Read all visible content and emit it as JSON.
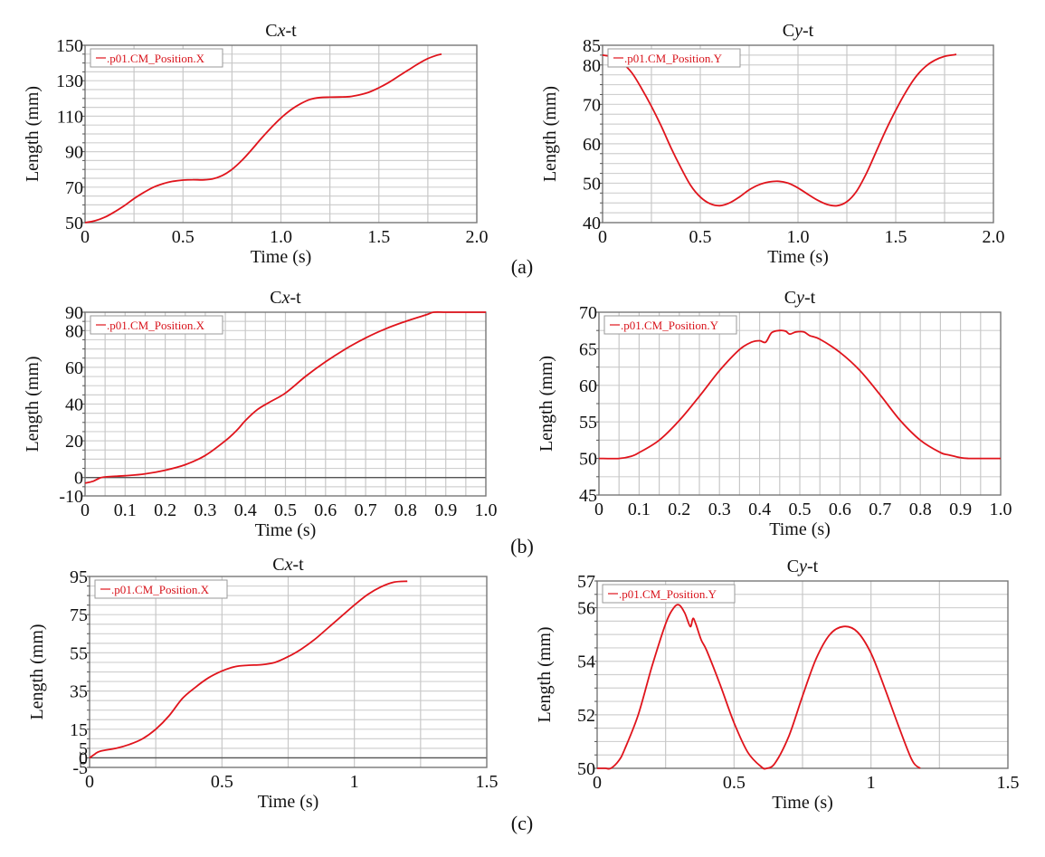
{
  "figure": {
    "panel_labels": [
      "(a)",
      "(b)",
      "(c)"
    ],
    "line_color": "#e0141c",
    "grid_color": "#d0d0d0"
  },
  "chart_data": [
    {
      "id": "a-cx",
      "panel": "(a)",
      "type": "line",
      "title": "Cx-t",
      "title_prefix": "C",
      "title_var": "x",
      "title_suffix": "-t",
      "xlabel": "Time (s)",
      "ylabel": "Length (mm)",
      "xlim": [
        0,
        2.0
      ],
      "ylim": [
        50,
        150
      ],
      "xticks": [
        0,
        0.5,
        1.0,
        1.5,
        2.0
      ],
      "xtick_labels": [
        "0",
        "0.5",
        "1.0",
        "1.5",
        "2.0"
      ],
      "yticks": [
        50,
        70,
        90,
        110,
        130,
        150
      ],
      "ytick_labels": [
        "50",
        "70",
        "90",
        "110",
        "130",
        "150"
      ],
      "minor_y_step": 5,
      "minor_x_step": 0.25,
      "zero_line": false,
      "legend": {
        "label": ".p01.CM_Position.X",
        "position": "top-left"
      },
      "series": [
        {
          "name": ".p01.CM_Position.X",
          "x": [
            0,
            0.05,
            0.1,
            0.15,
            0.2,
            0.25,
            0.3,
            0.35,
            0.4,
            0.45,
            0.5,
            0.55,
            0.6,
            0.65,
            0.7,
            0.75,
            0.8,
            0.85,
            0.9,
            0.95,
            1.0,
            1.05,
            1.1,
            1.15,
            1.2,
            1.25,
            1.3,
            1.35,
            1.4,
            1.45,
            1.5,
            1.55,
            1.6,
            1.65,
            1.7,
            1.75,
            1.8,
            1.82
          ],
          "y": [
            50,
            51,
            53,
            56,
            59.5,
            63.5,
            67,
            70,
            72,
            73.3,
            74,
            74.2,
            74.1,
            74.6,
            76.5,
            80,
            85,
            91,
            97.5,
            103.5,
            109,
            113.5,
            117,
            119.5,
            120.5,
            120.7,
            120.8,
            121,
            122,
            123.5,
            126,
            129,
            132.5,
            136,
            139.5,
            142.5,
            144.5,
            145
          ]
        }
      ]
    },
    {
      "id": "a-cy",
      "panel": "(a)",
      "type": "line",
      "title": "Cy-t",
      "title_prefix": "C",
      "title_var": "y",
      "title_suffix": "-t",
      "xlabel": "Time (s)",
      "ylabel": "Length (mm)",
      "xlim": [
        0,
        2.0
      ],
      "ylim": [
        40,
        85
      ],
      "xticks": [
        0,
        0.5,
        1.0,
        1.5,
        2.0
      ],
      "xtick_labels": [
        "0",
        "0.5",
        "1.0",
        "1.5",
        "2.0"
      ],
      "yticks": [
        40,
        50,
        60,
        70,
        80,
        85
      ],
      "ytick_labels": [
        "40",
        "50",
        "60",
        "70",
        "80",
        "85"
      ],
      "minor_y_step": 2.5,
      "minor_x_step": 0.25,
      "zero_line": false,
      "legend": {
        "label": ".p01.CM_Position.Y",
        "position": "top-left"
      },
      "series": [
        {
          "name": ".p01.CM_Position.Y",
          "x": [
            0,
            0.05,
            0.1,
            0.15,
            0.2,
            0.25,
            0.3,
            0.35,
            0.4,
            0.45,
            0.5,
            0.55,
            0.6,
            0.65,
            0.7,
            0.75,
            0.8,
            0.85,
            0.9,
            0.95,
            1.0,
            1.05,
            1.1,
            1.15,
            1.2,
            1.25,
            1.3,
            1.35,
            1.4,
            1.45,
            1.5,
            1.55,
            1.6,
            1.65,
            1.7,
            1.75,
            1.8,
            1.81
          ],
          "y": [
            82.5,
            82,
            80.5,
            78,
            74,
            69.5,
            64.5,
            59,
            54,
            49.5,
            46.5,
            44.8,
            44.3,
            45,
            46.5,
            48.3,
            49.6,
            50.3,
            50.5,
            50,
            48.8,
            47.2,
            45.7,
            44.6,
            44.3,
            45.3,
            48,
            52.5,
            58,
            63.5,
            68.5,
            73,
            76.8,
            79.5,
            81.2,
            82.2,
            82.6,
            82.7
          ]
        }
      ]
    },
    {
      "id": "b-cx",
      "panel": "(b)",
      "type": "line",
      "title": "Cx-t",
      "title_prefix": "C",
      "title_var": "x",
      "title_suffix": "-t",
      "xlabel": "Time (s)",
      "ylabel": "Length (mm)",
      "xlim": [
        0,
        1.0
      ],
      "ylim": [
        -10,
        90
      ],
      "xticks": [
        0,
        0.1,
        0.2,
        0.3,
        0.4,
        0.5,
        0.6,
        0.7,
        0.8,
        0.9,
        1.0
      ],
      "xtick_labels": [
        "0",
        "0.1",
        "0.2",
        "0.3",
        "0.4",
        "0.5",
        "0.6",
        "0.7",
        "0.8",
        "0.9",
        "1.0"
      ],
      "yticks": [
        -10,
        0,
        20,
        40,
        60,
        80,
        90
      ],
      "ytick_labels": [
        "-10",
        "0",
        "20",
        "40",
        "60",
        "80",
        "90"
      ],
      "minor_y_step": 5,
      "minor_x_step": 0.05,
      "zero_line": true,
      "legend": {
        "label": ".p01.CM_Position.X",
        "position": "top-left"
      },
      "series": [
        {
          "name": ".p01.CM_Position.X",
          "x": [
            0,
            0.02,
            0.04,
            0.06,
            0.1,
            0.15,
            0.2,
            0.25,
            0.3,
            0.35,
            0.38,
            0.4,
            0.43,
            0.46,
            0.5,
            0.55,
            0.6,
            0.65,
            0.7,
            0.75,
            0.8,
            0.85,
            0.87,
            0.9,
            0.95,
            1.0
          ],
          "y": [
            -3,
            -2,
            0,
            0.5,
            1,
            2,
            4,
            7,
            12,
            20,
            26,
            31,
            37,
            41,
            46,
            55,
            63,
            70,
            76,
            81,
            85,
            88.5,
            90,
            90,
            90,
            90
          ]
        }
      ]
    },
    {
      "id": "b-cy",
      "panel": "(b)",
      "type": "line",
      "title": "Cy-t",
      "title_prefix": "C",
      "title_var": "y",
      "title_suffix": "-t",
      "xlabel": "Time (s)",
      "ylabel": "Length (mm)",
      "xlim": [
        0,
        1.0
      ],
      "ylim": [
        45,
        70
      ],
      "xticks": [
        0,
        0.1,
        0.2,
        0.3,
        0.4,
        0.5,
        0.6,
        0.7,
        0.8,
        0.9,
        1.0
      ],
      "xtick_labels": [
        "0",
        "0.1",
        "0.2",
        "0.3",
        "0.4",
        "0.5",
        "0.6",
        "0.7",
        "0.8",
        "0.9",
        "1.0"
      ],
      "yticks": [
        45,
        50,
        55,
        60,
        65,
        70
      ],
      "ytick_labels": [
        "45",
        "50",
        "55",
        "60",
        "65",
        "70"
      ],
      "minor_y_step": 2.5,
      "minor_x_step": 0.05,
      "zero_line": false,
      "legend": {
        "label": ".p01.CM_Position.Y",
        "position": "top-left"
      },
      "series": [
        {
          "name": ".p01.CM_Position.Y",
          "x": [
            0,
            0.05,
            0.08,
            0.1,
            0.15,
            0.2,
            0.25,
            0.3,
            0.35,
            0.38,
            0.4,
            0.415,
            0.43,
            0.45,
            0.465,
            0.475,
            0.49,
            0.51,
            0.525,
            0.55,
            0.6,
            0.65,
            0.7,
            0.75,
            0.8,
            0.85,
            0.87,
            0.9,
            0.92,
            0.95,
            1.0
          ],
          "y": [
            50,
            50,
            50.3,
            50.8,
            52.5,
            55.2,
            58.5,
            62,
            64.9,
            65.9,
            66.1,
            65.9,
            67.2,
            67.5,
            67.4,
            67,
            67.3,
            67.3,
            66.8,
            66.3,
            64.5,
            62,
            58.7,
            55.2,
            52.5,
            50.8,
            50.5,
            50.1,
            50,
            50,
            50
          ]
        }
      ]
    },
    {
      "id": "c-cx",
      "panel": "(c)",
      "type": "line",
      "title": "Cx-t",
      "title_prefix": "C",
      "title_var": "x",
      "title_suffix": "-t",
      "xlabel": "Time (s)",
      "ylabel": "Length (mm)",
      "xlim": [
        0,
        1.5
      ],
      "ylim": [
        -5,
        95
      ],
      "xticks": [
        0,
        0.5,
        1,
        1.5
      ],
      "xtick_labels": [
        "0",
        "0.5",
        "1",
        "1.5"
      ],
      "yticks": [
        -5,
        0,
        5,
        15,
        35,
        55,
        75,
        95
      ],
      "ytick_labels": [
        "-5",
        "0",
        "5",
        "15",
        "35",
        "55",
        "75",
        "95"
      ],
      "minor_y_step": 5,
      "minor_x_step": 0.25,
      "zero_line": true,
      "legend": {
        "label": ".p01.CM_Position.X",
        "position": "top-left"
      },
      "series": [
        {
          "name": ".p01.CM_Position.X",
          "x": [
            0,
            0.02,
            0.04,
            0.1,
            0.15,
            0.2,
            0.25,
            0.3,
            0.35,
            0.4,
            0.45,
            0.5,
            0.55,
            0.6,
            0.65,
            0.7,
            0.75,
            0.8,
            0.85,
            0.9,
            0.95,
            1.0,
            1.05,
            1.1,
            1.15,
            1.2
          ],
          "y": [
            0,
            2,
            3.5,
            5,
            7,
            10,
            15,
            22,
            31,
            37,
            42,
            45.5,
            47.8,
            48.5,
            48.8,
            50,
            53,
            57,
            62,
            68,
            74,
            80,
            85.5,
            89.5,
            92,
            92.5
          ]
        }
      ]
    },
    {
      "id": "c-cy",
      "panel": "(c)",
      "type": "line",
      "title": "Cy-t",
      "title_prefix": "C",
      "title_var": "y",
      "title_suffix": "-t",
      "xlabel": "Time (s)",
      "ylabel": "Length (mm)",
      "xlim": [
        0,
        1.5
      ],
      "ylim": [
        50,
        57
      ],
      "xticks": [
        0,
        0.5,
        1,
        1.5
      ],
      "xtick_labels": [
        "0",
        "0.5",
        "1",
        "1.5"
      ],
      "yticks": [
        50,
        52,
        54,
        56,
        57
      ],
      "ytick_labels": [
        "50",
        "52",
        "54",
        "56",
        "57"
      ],
      "minor_y_step": 0.5,
      "minor_x_step": 0.25,
      "zero_line": false,
      "legend": {
        "label": ".p01.CM_Position.Y",
        "position": "top-left"
      },
      "series": [
        {
          "name": ".p01.CM_Position.Y",
          "x": [
            0,
            0.03,
            0.05,
            0.08,
            0.1,
            0.15,
            0.2,
            0.25,
            0.28,
            0.3,
            0.32,
            0.34,
            0.35,
            0.36,
            0.38,
            0.4,
            0.45,
            0.5,
            0.55,
            0.6,
            0.62,
            0.65,
            0.7,
            0.75,
            0.8,
            0.85,
            0.9,
            0.95,
            1.0,
            1.05,
            1.1,
            1.15,
            1.18
          ],
          "y": [
            50,
            50,
            50,
            50.3,
            50.7,
            52,
            53.8,
            55.4,
            56,
            56.1,
            55.8,
            55.3,
            55.6,
            55.4,
            54.8,
            54.4,
            53.1,
            51.7,
            50.6,
            50.05,
            50,
            50.2,
            51.2,
            52.7,
            54.1,
            55,
            55.3,
            55.1,
            54.3,
            53,
            51.6,
            50.3,
            50
          ]
        }
      ]
    }
  ]
}
